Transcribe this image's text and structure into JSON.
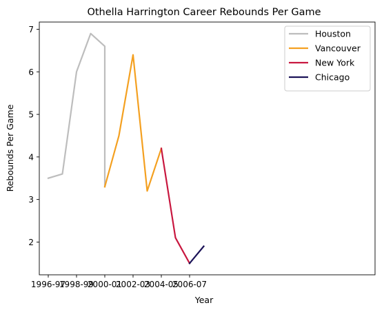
{
  "chart_data": {
    "type": "line",
    "title": "Othella Harrington Career Rebounds Per Game",
    "xlabel": "Year",
    "ylabel": "Rebounds Per Game",
    "x_ticks": [
      "1996-97",
      "1998-99",
      "2000-01",
      "2002-03",
      "2004-05",
      "2006-07"
    ],
    "y_ticks": [
      2,
      3,
      4,
      5,
      6,
      7
    ],
    "ylim": [
      1.23,
      7.17
    ],
    "grid": false,
    "legend_position": "upper right",
    "series": [
      {
        "name": "Houston",
        "color": "#bdbdbd",
        "points": [
          {
            "x": "1996-97",
            "y": 3.5
          },
          {
            "x": "1997-98",
            "y": 3.6
          },
          {
            "x": "1998-99",
            "y": 6.0
          },
          {
            "x": "1999-00",
            "y": 6.9
          },
          {
            "x": "2000-01",
            "y": 6.6
          },
          {
            "x": "2000-01",
            "y": 3.3
          }
        ]
      },
      {
        "name": "Vancouver",
        "color": "#f4a020",
        "points": [
          {
            "x": "2000-01",
            "y": 3.3
          },
          {
            "x": "2001-02",
            "y": 4.5
          },
          {
            "x": "2002-03",
            "y": 6.4
          },
          {
            "x": "2003-04",
            "y": 3.2
          },
          {
            "x": "2004-05",
            "y": 4.2
          }
        ]
      },
      {
        "name": "New York",
        "color": "#c8173f",
        "points": [
          {
            "x": "2004-05",
            "y": 4.2
          },
          {
            "x": "2005-06",
            "y": 2.1
          },
          {
            "x": "2006-07",
            "y": 1.5
          }
        ]
      },
      {
        "name": "Chicago",
        "color": "#1b1257",
        "points": [
          {
            "x": "2006-07",
            "y": 1.5
          },
          {
            "x": "2007-08",
            "y": 1.9
          }
        ]
      }
    ]
  }
}
